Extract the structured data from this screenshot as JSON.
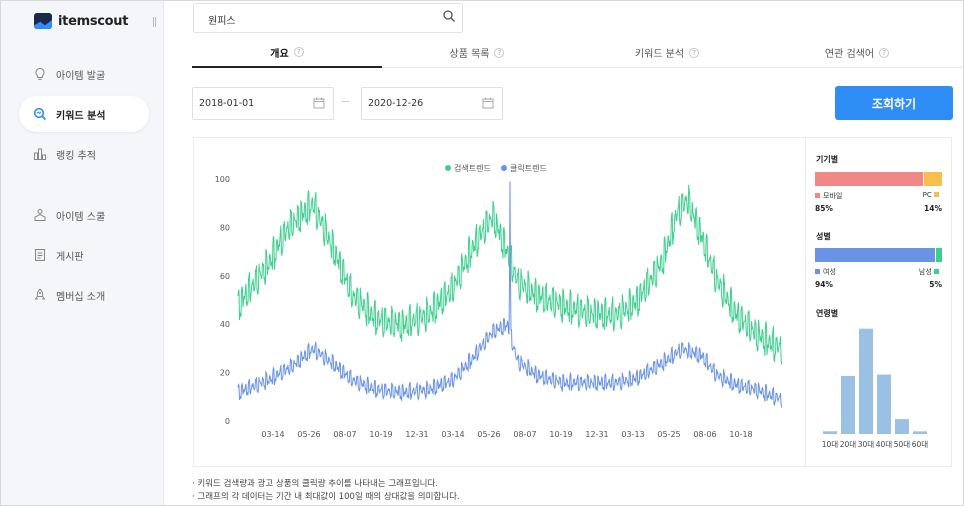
{
  "app": {
    "logo_text": "itemscout"
  },
  "sidebar": {
    "items": [
      {
        "label": "아이템 발굴",
        "icon": "lightbulb-icon"
      },
      {
        "label": "키워드 분석",
        "icon": "keyword-search-icon",
        "active": true
      },
      {
        "label": "랭킹 추적",
        "icon": "bar-chart-icon"
      },
      {
        "label": "아이템 스쿨",
        "icon": "school-icon"
      },
      {
        "label": "게시판",
        "icon": "board-icon"
      },
      {
        "label": "멤버십 소개",
        "icon": "rocket-icon"
      }
    ]
  },
  "search": {
    "value": "원피스"
  },
  "tabs": [
    {
      "label": "개요",
      "active": true
    },
    {
      "label": "상품 목록"
    },
    {
      "label": "키워드 분석"
    },
    {
      "label": "연관 검색어"
    }
  ],
  "help_glyph": "?",
  "date_range": {
    "start": "2018-01-01",
    "end": "2020-12-26"
  },
  "query_button": {
    "label": "조회하기"
  },
  "chart_data": {
    "type": "line",
    "legend": [
      "검색트렌드",
      "클릭트렌드"
    ],
    "legend_position": "top-center",
    "x_tick_labels": [
      "03-14",
      "05-26",
      "08-07",
      "10-19",
      "12-31",
      "03-14",
      "05-26",
      "08-07",
      "10-19",
      "12-31",
      "03-13",
      "05-25",
      "08-06",
      "10-18"
    ],
    "y_ticks": [
      0,
      20,
      40,
      60,
      80,
      100
    ],
    "ylim": [
      0,
      100
    ],
    "grid": false,
    "colors": {
      "search": "#3ecf8e",
      "click": "#6a93e6"
    },
    "series": [
      {
        "name": "검색트렌드",
        "anchors": [
          [
            0,
            48
          ],
          [
            60,
            65
          ],
          [
            100,
            80
          ],
          [
            150,
            90
          ],
          [
            190,
            72
          ],
          [
            230,
            52
          ],
          [
            280,
            42
          ],
          [
            330,
            40
          ],
          [
            380,
            44
          ],
          [
            430,
            55
          ],
          [
            470,
            72
          ],
          [
            510,
            85
          ],
          [
            540,
            70
          ],
          [
            560,
            58
          ],
          [
            600,
            52
          ],
          [
            650,
            48
          ],
          [
            700,
            45
          ],
          [
            760,
            44
          ],
          [
            800,
            50
          ],
          [
            850,
            66
          ],
          [
            880,
            86
          ],
          [
            900,
            92
          ],
          [
            930,
            76
          ],
          [
            960,
            58
          ],
          [
            1000,
            44
          ],
          [
            1040,
            36
          ],
          [
            1090,
            30
          ]
        ],
        "amplitude": 6
      },
      {
        "name": "클릭트렌드",
        "anchors": [
          [
            0,
            12
          ],
          [
            60,
            17
          ],
          [
            110,
            23
          ],
          [
            150,
            30
          ],
          [
            190,
            24
          ],
          [
            230,
            17
          ],
          [
            280,
            13
          ],
          [
            330,
            12
          ],
          [
            380,
            13
          ],
          [
            430,
            17
          ],
          [
            470,
            26
          ],
          [
            510,
            37
          ],
          [
            540,
            40
          ],
          [
            560,
            25
          ],
          [
            600,
            19
          ],
          [
            650,
            16
          ],
          [
            700,
            16
          ],
          [
            760,
            16
          ],
          [
            800,
            18
          ],
          [
            850,
            24
          ],
          [
            890,
            30
          ],
          [
            930,
            27
          ],
          [
            960,
            19
          ],
          [
            1000,
            15
          ],
          [
            1040,
            13
          ],
          [
            1090,
            9
          ]
        ],
        "amplitude": 3,
        "spike": {
          "x": 545,
          "value": 99
        }
      }
    ]
  },
  "device": {
    "title": "기기별",
    "mobile": {
      "label": "모바일",
      "percent": 85,
      "pct_text": "85%",
      "color": "#f08888"
    },
    "pc": {
      "label": "PC",
      "percent": 14,
      "pct_text": "14%",
      "color": "#f7c04e"
    }
  },
  "gender": {
    "title": "성별",
    "female": {
      "label": "여성",
      "percent": 94,
      "pct_text": "94%",
      "color": "#6a93e6"
    },
    "male": {
      "label": "남성",
      "percent": 5,
      "pct_text": "5%",
      "color": "#3ecf8e"
    }
  },
  "age": {
    "title": "연령별",
    "categories": [
      "10대",
      "20대",
      "30대",
      "40대",
      "50대",
      "60대"
    ],
    "values": [
      2,
      43,
      78,
      44,
      11,
      2
    ],
    "ylim": [
      0,
      80
    ],
    "color": "#9ac0e3"
  },
  "notes": [
    "· 키워드 검색량과 광고 상품의 클릭량 추이를 나타내는 그래프입니다.",
    "· 그래프의 각 데이터는 기간 내 최대값이 100일 때의 상대값을 의미합니다."
  ]
}
